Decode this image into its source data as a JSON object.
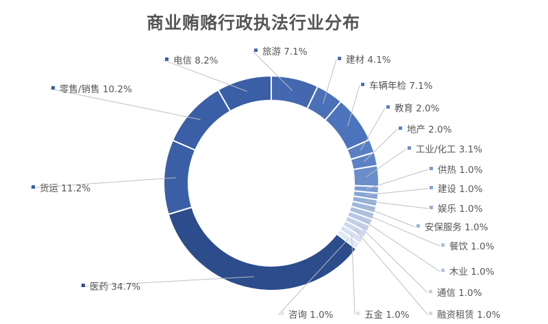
{
  "chart_data": {
    "type": "pie",
    "subtype": "donut",
    "title": "商业贿赂行政执法行业分布",
    "categories": [
      "医药",
      "货运",
      "零售/销售",
      "电信",
      "旅游",
      "建材",
      "车辆年检",
      "教育",
      "地产",
      "工业/化工",
      "供热",
      "建设",
      "娱乐",
      "安保服务",
      "餐饮",
      "木业",
      "通信",
      "融资租赁",
      "五金",
      "咨询"
    ],
    "values": [
      34.7,
      11.2,
      10.2,
      8.2,
      7.1,
      4.1,
      7.1,
      2.0,
      2.0,
      3.1,
      1.0,
      1.0,
      1.0,
      1.0,
      1.0,
      1.0,
      1.0,
      1.0,
      1.0,
      1.0
    ],
    "labels": [
      "医药 34.7%",
      "货运 11.2%",
      "零售/销售 10.2%",
      "电信 8.2%",
      "旅游 7.1%",
      "建材 4.1%",
      "车辆年检 7.1%",
      "教育 2.0%",
      "地产 2.0%",
      "工业/化工 3.1%",
      "供热 1.0%",
      "建设 1.0%",
      "娱乐 1.0%",
      "安保服务 1.0%",
      "餐饮 1.0%",
      "木业 1.0%",
      "通信 1.0%",
      "融资租赁 1.0%",
      "五金 1.0%",
      "咨询 1.0%"
    ],
    "colors": [
      "#2C4C8C",
      "#3A5FA6",
      "#3A5FA6",
      "#3A5FA6",
      "#4468B0",
      "#4A70B8",
      "#4C74BC",
      "#5A80C4",
      "#5C82C6",
      "#6A8ECC",
      "#7A9AD2",
      "#86A4D6",
      "#92ADDA",
      "#9EB6DE",
      "#AABFE2",
      "#B6C8E6",
      "#C1D0EA",
      "#CCD8EE",
      "#D6E0F2",
      "#E0E8F6"
    ],
    "legend_position": "labels on leader lines, each with a square color marker",
    "start_direction": "clockwise from the top, starting with 旅游, ending with 电信"
  }
}
